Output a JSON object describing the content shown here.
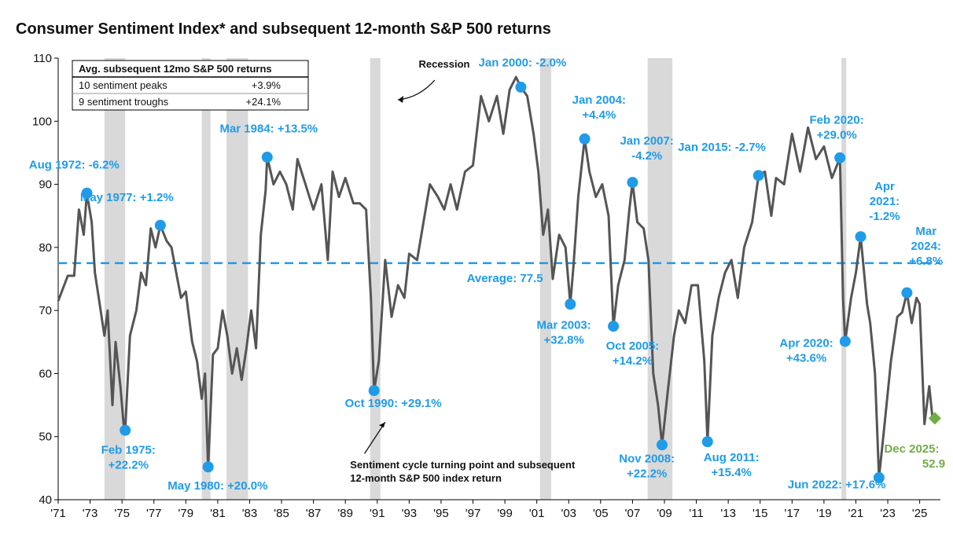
{
  "chart_data": {
    "type": "line",
    "title": "Consumer Sentiment Index* and subsequent 12-month S&P 500 returns",
    "ylim": [
      40,
      110
    ],
    "xlim": [
      1971,
      2026.3
    ],
    "yticks": [
      "40",
      "50",
      "60",
      "70",
      "80",
      "90",
      "100",
      "110"
    ],
    "xticks": [
      "'71",
      "'73",
      "'75",
      "'77",
      "'79",
      "'81",
      "'83",
      "'85",
      "'87",
      "'89",
      "'91",
      "'93",
      "'95",
      "'97",
      "'99",
      "'01",
      "'03",
      "'05",
      "'07",
      "'09",
      "'11",
      "'13",
      "'15",
      "'17",
      "'19",
      "'21",
      "'23",
      "'25"
    ],
    "grid": false,
    "colors": {
      "line": "#555555",
      "accent": "#1f9bea",
      "recession": "#d9d9d9",
      "latest": "#70ad47"
    },
    "recessions": [
      [
        1973.9,
        1975.2
      ],
      [
        1980.0,
        1980.55
      ],
      [
        1981.55,
        1982.9
      ],
      [
        1990.55,
        1991.2
      ],
      [
        2001.2,
        2001.9
      ],
      [
        2007.95,
        2009.5
      ],
      [
        2020.1,
        2020.4
      ]
    ],
    "average": {
      "value": 77.5,
      "label": "Average: 77.5"
    },
    "series": [
      {
        "values": [
          [
            1971.0,
            71.5
          ],
          [
            1971.6,
            75.5
          ],
          [
            1972.0,
            75.5
          ],
          [
            1972.3,
            86
          ],
          [
            1972.6,
            82
          ],
          [
            1972.8,
            88.6
          ],
          [
            1973.1,
            84
          ],
          [
            1973.3,
            76
          ],
          [
            1973.6,
            71
          ],
          [
            1973.9,
            66
          ],
          [
            1974.1,
            70
          ],
          [
            1974.4,
            55
          ],
          [
            1974.6,
            65
          ],
          [
            1974.9,
            58
          ],
          [
            1975.1,
            52
          ],
          [
            1975.2,
            51
          ],
          [
            1975.5,
            66
          ],
          [
            1975.9,
            70
          ],
          [
            1976.2,
            76
          ],
          [
            1976.5,
            74
          ],
          [
            1976.8,
            83
          ],
          [
            1977.1,
            80
          ],
          [
            1977.4,
            83.5
          ],
          [
            1977.8,
            81
          ],
          [
            1978.1,
            80
          ],
          [
            1978.4,
            76
          ],
          [
            1978.7,
            72
          ],
          [
            1979.0,
            73
          ],
          [
            1979.4,
            65
          ],
          [
            1979.7,
            62
          ],
          [
            1980.0,
            56
          ],
          [
            1980.2,
            60
          ],
          [
            1980.4,
            45
          ],
          [
            1980.7,
            63
          ],
          [
            1981.0,
            64
          ],
          [
            1981.3,
            70
          ],
          [
            1981.6,
            66
          ],
          [
            1981.9,
            60
          ],
          [
            1982.2,
            64
          ],
          [
            1982.5,
            59
          ],
          [
            1982.8,
            64
          ],
          [
            1983.1,
            70
          ],
          [
            1983.4,
            64
          ],
          [
            1983.7,
            82
          ],
          [
            1984.0,
            89
          ],
          [
            1984.1,
            94.3
          ],
          [
            1984.5,
            90
          ],
          [
            1984.9,
            92
          ],
          [
            1985.3,
            90
          ],
          [
            1985.7,
            86
          ],
          [
            1986.0,
            94
          ],
          [
            1986.5,
            90
          ],
          [
            1987.0,
            86
          ],
          [
            1987.5,
            90
          ],
          [
            1987.9,
            78
          ],
          [
            1988.2,
            92
          ],
          [
            1988.6,
            88
          ],
          [
            1989.0,
            91
          ],
          [
            1989.5,
            87
          ],
          [
            1989.9,
            87
          ],
          [
            1990.3,
            86
          ],
          [
            1990.6,
            72
          ],
          [
            1990.8,
            57.3
          ],
          [
            1991.1,
            62
          ],
          [
            1991.5,
            78
          ],
          [
            1991.9,
            69
          ],
          [
            1992.3,
            74
          ],
          [
            1992.7,
            72
          ],
          [
            1993.0,
            79
          ],
          [
            1993.5,
            78
          ],
          [
            1993.9,
            84
          ],
          [
            1994.3,
            90
          ],
          [
            1994.8,
            88
          ],
          [
            1995.2,
            86
          ],
          [
            1995.6,
            90
          ],
          [
            1996.0,
            86
          ],
          [
            1996.5,
            92
          ],
          [
            1997.0,
            93
          ],
          [
            1997.5,
            104
          ],
          [
            1998.0,
            100
          ],
          [
            1998.5,
            104
          ],
          [
            1998.9,
            98
          ],
          [
            1999.3,
            105
          ],
          [
            1999.7,
            107
          ],
          [
            2000.0,
            105.4
          ],
          [
            2000.4,
            104
          ],
          [
            2000.8,
            98
          ],
          [
            2001.1,
            92
          ],
          [
            2001.4,
            82
          ],
          [
            2001.7,
            86
          ],
          [
            2002.0,
            75
          ],
          [
            2002.4,
            82
          ],
          [
            2002.8,
            80
          ],
          [
            2003.1,
            71
          ],
          [
            2003.3,
            77
          ],
          [
            2003.6,
            88
          ],
          [
            2004.0,
            97.2
          ],
          [
            2004.3,
            92
          ],
          [
            2004.7,
            88
          ],
          [
            2005.1,
            90
          ],
          [
            2005.5,
            85
          ],
          [
            2005.8,
            67.5
          ],
          [
            2006.1,
            74
          ],
          [
            2006.5,
            78
          ],
          [
            2006.8,
            86
          ],
          [
            2007.0,
            90.3
          ],
          [
            2007.3,
            84
          ],
          [
            2007.7,
            83
          ],
          [
            2008.0,
            78
          ],
          [
            2008.3,
            60
          ],
          [
            2008.6,
            55
          ],
          [
            2008.85,
            48.7
          ],
          [
            2009.2,
            57
          ],
          [
            2009.6,
            66
          ],
          [
            2009.9,
            70
          ],
          [
            2010.3,
            68
          ],
          [
            2010.7,
            74
          ],
          [
            2011.1,
            74
          ],
          [
            2011.5,
            62
          ],
          [
            2011.7,
            49.2
          ],
          [
            2012.0,
            66
          ],
          [
            2012.4,
            72
          ],
          [
            2012.8,
            76
          ],
          [
            2013.2,
            78
          ],
          [
            2013.6,
            72
          ],
          [
            2014.0,
            80
          ],
          [
            2014.5,
            84
          ],
          [
            2014.9,
            91.4
          ],
          [
            2015.3,
            92
          ],
          [
            2015.7,
            85
          ],
          [
            2016.0,
            91
          ],
          [
            2016.5,
            90
          ],
          [
            2017.0,
            98
          ],
          [
            2017.5,
            92
          ],
          [
            2018.0,
            99
          ],
          [
            2018.5,
            94
          ],
          [
            2019.0,
            96
          ],
          [
            2019.5,
            91
          ],
          [
            2020.0,
            94.2
          ],
          [
            2020.2,
            71.8
          ],
          [
            2020.33,
            65.1
          ],
          [
            2020.7,
            72
          ],
          [
            2021.0,
            76
          ],
          [
            2021.3,
            81.7
          ],
          [
            2021.7,
            71
          ],
          [
            2021.9,
            68
          ],
          [
            2022.2,
            60
          ],
          [
            2022.45,
            43.5
          ],
          [
            2022.8,
            52
          ],
          [
            2023.2,
            62
          ],
          [
            2023.6,
            69
          ],
          [
            2023.9,
            69.7
          ],
          [
            2024.2,
            72.8
          ],
          [
            2024.5,
            68
          ],
          [
            2024.8,
            72
          ],
          [
            2025.0,
            71
          ],
          [
            2025.3,
            52
          ],
          [
            2025.6,
            58
          ],
          [
            2025.8,
            53
          ],
          [
            2025.95,
            52.9
          ]
        ]
      }
    ],
    "points": [
      {
        "x": 1972.8,
        "y": 88.6,
        "label": [
          "Aug 1972: -6.2%"
        ],
        "lx": 1972.0,
        "ly": 92.5,
        "anchor": "middle"
      },
      {
        "x": 1975.2,
        "y": 51,
        "label": [
          "Feb 1975:",
          "+22.2%"
        ],
        "lx": 1975.4,
        "ly": 47.3,
        "anchor": "middle"
      },
      {
        "x": 1977.4,
        "y": 83.5,
        "label": [
          "May 1977: +1.2%"
        ],
        "lx": 1975.3,
        "ly": 87.3,
        "anchor": "middle"
      },
      {
        "x": 1980.4,
        "y": 45.2,
        "label": [
          "May 1980: +20.0%"
        ],
        "lx": 1981.0,
        "ly": 41.6,
        "anchor": "middle"
      },
      {
        "x": 1984.1,
        "y": 94.3,
        "label": [
          "Mar 1984: +13.5%"
        ],
        "lx": 1984.2,
        "ly": 98.2,
        "anchor": "middle"
      },
      {
        "x": 1990.8,
        "y": 57.3,
        "label": [
          "Oct 1990: +29.1%"
        ],
        "lx": 1992.0,
        "ly": 54.7,
        "anchor": "middle"
      },
      {
        "x": 2000.0,
        "y": 105.4,
        "label": [
          "Jan 2000: -2.0%"
        ],
        "lx": 2000.1,
        "ly": 108.7,
        "anchor": "middle"
      },
      {
        "x": 2003.1,
        "y": 71,
        "label": [
          "Mar 2003:",
          "+32.8%"
        ],
        "lx": 2002.7,
        "ly": 67.1,
        "anchor": "middle"
      },
      {
        "x": 2004.0,
        "y": 97.2,
        "label": [
          "Jan 2004:",
          "+4.4%"
        ],
        "lx": 2004.9,
        "ly": 102.8,
        "anchor": "middle"
      },
      {
        "x": 2005.8,
        "y": 67.5,
        "label": [
          "Oct 2005:",
          "+14.2%"
        ],
        "lx": 2007.0,
        "ly": 63.8,
        "anchor": "middle"
      },
      {
        "x": 2007.0,
        "y": 90.3,
        "label": [
          "Jan 2007:",
          "-4.2%"
        ],
        "lx": 2007.9,
        "ly": 96.3,
        "anchor": "middle"
      },
      {
        "x": 2008.85,
        "y": 48.7,
        "label": [
          "Nov 2008:",
          "+22.2%"
        ],
        "lx": 2007.9,
        "ly": 45.9,
        "anchor": "middle"
      },
      {
        "x": 2011.7,
        "y": 49.2,
        "label": [
          "Aug 2011:",
          "+15.4%"
        ],
        "lx": 2013.2,
        "ly": 46.1,
        "anchor": "middle"
      },
      {
        "x": 2014.9,
        "y": 91.4,
        "label": [
          "Jan 2015: -2.7%"
        ],
        "lx": 2012.6,
        "ly": 95.3,
        "anchor": "middle"
      },
      {
        "x": 2020.0,
        "y": 94.2,
        "label": [
          "Feb 2020:",
          "+29.0%"
        ],
        "lx": 2019.8,
        "ly": 99.6,
        "anchor": "middle"
      },
      {
        "x": 2020.33,
        "y": 65.1,
        "label": [
          "Apr 2020:",
          "+43.6%"
        ],
        "lx": 2017.9,
        "ly": 64.2,
        "anchor": "middle"
      },
      {
        "x": 2021.3,
        "y": 81.7,
        "label": [
          "Apr",
          "2021:",
          "-1.2%"
        ],
        "lx": 2022.8,
        "ly": 89.1,
        "anchor": "middle"
      },
      {
        "x": 2022.45,
        "y": 43.5,
        "label": [
          "Jun 2022: +17.6%"
        ],
        "lx": 2019.8,
        "ly": 41.8,
        "anchor": "middle"
      },
      {
        "x": 2024.2,
        "y": 72.8,
        "label": [
          "Mar",
          "2024:",
          "+6.8%"
        ],
        "lx": 2025.4,
        "ly": 82.0,
        "anchor": "middle"
      }
    ],
    "latest": {
      "x": 2025.95,
      "y": 52.9,
      "label": [
        "Dec 2025:",
        "52.9"
      ],
      "lx": 2024.5,
      "ly": 47.5
    },
    "annotations": {
      "recession": "Recession",
      "turning_point": [
        "Sentiment cycle turning point and subsequent",
        "12-month S&P 500 index return"
      ]
    },
    "table": {
      "header": "Avg. subsequent 12mo S&P 500 returns",
      "rows": [
        {
          "label": "10 sentiment peaks",
          "value": "+3.9%"
        },
        {
          "label": "9 sentiment troughs",
          "value": "+24.1%"
        }
      ]
    }
  }
}
